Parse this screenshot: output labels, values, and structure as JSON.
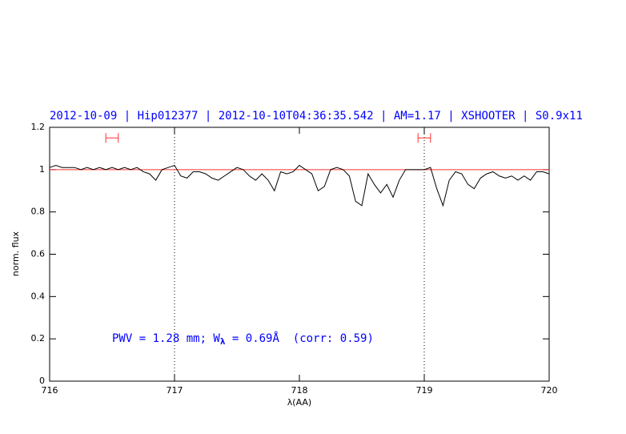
{
  "chart_data": {
    "type": "line",
    "title": "2012-10-09 | Hip012377 | 2012-10-10T04:36:35.542 | AM=1.17 | XSHOOTER | S0.9x11",
    "xlabel": "λ(AA)",
    "ylabel": "norm. flux",
    "annotation": [
      "PWV = 1.28 mm; W",
      "λ",
      " = 0.69Å  (corr: 0.59)"
    ],
    "xlim": [
      716,
      720
    ],
    "xticks": [
      716,
      717,
      718,
      719,
      720
    ],
    "ylim": [
      0,
      1.2
    ],
    "yticks": [
      0,
      0.2,
      0.4,
      0.6,
      0.8,
      1,
      1.2
    ],
    "color": "#000000",
    "text_color": "#0000ff",
    "hline": 1,
    "hline_color": "#ff3030",
    "vlines": [
      717,
      719
    ],
    "ranges": [
      [
        716.45,
        716.55
      ],
      [
        718.95,
        719.05
      ]
    ],
    "range_y": 1.15,
    "range_color": "#ff3030",
    "x": [
      716.0,
      716.05,
      716.1,
      716.15,
      716.2,
      716.25,
      716.3,
      716.35,
      716.4,
      716.45,
      716.5,
      716.55,
      716.6,
      716.65,
      716.7,
      716.75,
      716.8,
      716.85,
      716.9,
      716.95,
      717.0,
      717.05,
      717.1,
      717.15,
      717.2,
      717.25,
      717.3,
      717.35,
      717.4,
      717.45,
      717.5,
      717.55,
      717.6,
      717.65,
      717.7,
      717.75,
      717.8,
      717.85,
      717.9,
      717.95,
      718.0,
      718.05,
      718.1,
      718.15,
      718.2,
      718.25,
      718.3,
      718.35,
      718.4,
      718.45,
      718.5,
      718.55,
      718.6,
      718.65,
      718.7,
      718.75,
      718.8,
      718.85,
      718.9,
      718.95,
      719.0,
      719.05,
      719.1,
      719.15,
      719.2,
      719.25,
      719.3,
      719.35,
      719.4,
      719.45,
      719.5,
      719.55,
      719.6,
      719.65,
      719.7,
      719.75,
      719.8,
      719.85,
      719.9,
      719.95,
      720.0
    ],
    "values": [
      1.01,
      1.02,
      1.01,
      1.01,
      1.01,
      1.0,
      1.01,
      1.0,
      1.01,
      1.0,
      1.01,
      1.0,
      1.01,
      1.0,
      1.01,
      0.99,
      0.98,
      0.95,
      1.0,
      1.01,
      1.02,
      0.97,
      0.96,
      0.99,
      0.99,
      0.98,
      0.96,
      0.95,
      0.97,
      0.99,
      1.01,
      1.0,
      0.97,
      0.95,
      0.98,
      0.95,
      0.9,
      0.99,
      0.98,
      0.99,
      1.02,
      1.0,
      0.98,
      0.9,
      0.92,
      1.0,
      1.01,
      1.0,
      0.97,
      0.85,
      0.83,
      0.98,
      0.93,
      0.89,
      0.93,
      0.87,
      0.95,
      1.0,
      1.0,
      1.0,
      1.0,
      1.01,
      0.91,
      0.83,
      0.95,
      0.99,
      0.98,
      0.93,
      0.91,
      0.96,
      0.98,
      0.99,
      0.97,
      0.96,
      0.97,
      0.95,
      0.97,
      0.95,
      0.99,
      0.99,
      0.98
    ]
  }
}
